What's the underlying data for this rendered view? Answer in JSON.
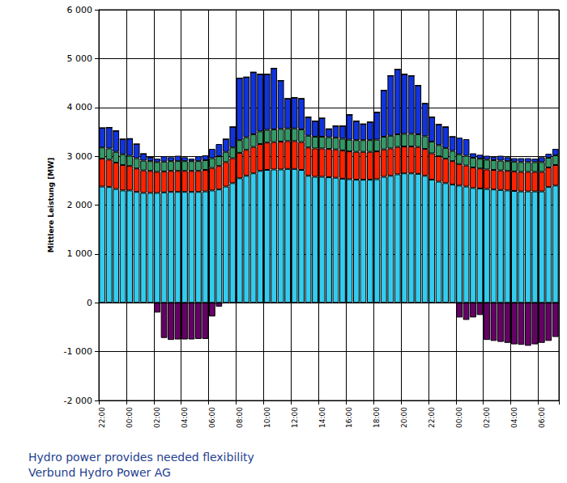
{
  "chart_data": {
    "type": "bar",
    "title": "Hydro power provides needed flexibility",
    "subtitle": "Verbund Hydro Power AG",
    "y_label": "Mittlere Leistung [MW]",
    "stacked": true,
    "grid": true,
    "categories": [
      "22:00",
      null,
      null,
      null,
      "00:00",
      null,
      null,
      null,
      "02:00",
      null,
      null,
      null,
      "04:00",
      null,
      null,
      null,
      "06:00",
      null,
      null,
      null,
      "08:00",
      null,
      null,
      null,
      "10:00",
      null,
      null,
      null,
      "12:00",
      null,
      null,
      null,
      "14:00",
      null,
      null,
      null,
      "16:00",
      null,
      null,
      null,
      "18:00",
      null,
      null,
      null,
      "20:00",
      null,
      null,
      null,
      "22:00",
      null,
      null,
      null,
      "00:00",
      null,
      null,
      null,
      "02:00",
      null,
      null,
      null,
      "04:00",
      null,
      null,
      null,
      "06:00",
      null,
      null
    ],
    "series": [
      {
        "color": "#33ccee",
        "values": [
          2380,
          2370,
          2330,
          2300,
          2300,
          2270,
          2250,
          2250,
          2250,
          2260,
          2270,
          2270,
          2270,
          2270,
          2270,
          2280,
          2300,
          2320,
          2380,
          2450,
          2550,
          2600,
          2650,
          2700,
          2720,
          2730,
          2730,
          2740,
          2740,
          2720,
          2600,
          2580,
          2580,
          2570,
          2560,
          2540,
          2530,
          2520,
          2520,
          2520,
          2530,
          2580,
          2600,
          2630,
          2650,
          2650,
          2640,
          2600,
          2520,
          2480,
          2450,
          2420,
          2400,
          2380,
          2350,
          2340,
          2330,
          2320,
          2310,
          2300,
          2290,
          2280,
          2280,
          2280,
          2280,
          2370,
          2400
        ]
      },
      {
        "color": "#ff2200",
        "values": [
          570,
          560,
          540,
          520,
          500,
          480,
          460,
          450,
          430,
          430,
          430,
          430,
          430,
          430,
          430,
          440,
          460,
          480,
          500,
          510,
          520,
          530,
          540,
          550,
          560,
          560,
          570,
          570,
          570,
          570,
          580,
          580,
          580,
          580,
          580,
          580,
          570,
          570,
          570,
          570,
          570,
          560,
          560,
          560,
          550,
          550,
          550,
          550,
          540,
          520,
          500,
          480,
          440,
          430,
          420,
          410,
          400,
          400,
          400,
          400,
          400,
          400,
          400,
          400,
          400,
          400,
          420
        ]
      },
      {
        "color": "#339966",
        "values": [
          230,
          230,
          220,
          220,
          210,
          210,
          200,
          200,
          200,
          200,
          200,
          200,
          200,
          200,
          200,
          200,
          200,
          200,
          210,
          220,
          260,
          260,
          260,
          260,
          260,
          260,
          260,
          260,
          260,
          260,
          240,
          240,
          240,
          240,
          240,
          240,
          240,
          240,
          240,
          240,
          240,
          260,
          260,
          260,
          260,
          260,
          260,
          260,
          240,
          230,
          220,
          210,
          200,
          200,
          200,
          200,
          200,
          200,
          200,
          200,
          200,
          200,
          200,
          200,
          200,
          200,
          200
        ]
      },
      {
        "color": "#1133dd",
        "values": [
          400,
          430,
          430,
          310,
          350,
          290,
          140,
          80,
          70,
          110,
          80,
          110,
          80,
          50,
          100,
          100,
          190,
          250,
          260,
          420,
          1270,
          1230,
          1270,
          1170,
          1140,
          1250,
          990,
          610,
          630,
          630,
          380,
          320,
          380,
          170,
          240,
          260,
          510,
          390,
          330,
          370,
          560,
          950,
          1230,
          1330,
          1220,
          1190,
          1000,
          670,
          500,
          420,
          430,
          290,
          340,
          340,
          90,
          80,
          80,
          70,
          100,
          80,
          70,
          80,
          80,
          70,
          100,
          80,
          130
        ]
      },
      {
        "color": "#660066",
        "values": [
          0,
          0,
          0,
          0,
          0,
          0,
          0,
          0,
          -200,
          -720,
          -760,
          -750,
          -750,
          -750,
          -740,
          -740,
          -280,
          -80,
          0,
          0,
          0,
          0,
          0,
          0,
          0,
          0,
          0,
          0,
          0,
          0,
          0,
          0,
          0,
          0,
          0,
          0,
          0,
          0,
          0,
          0,
          0,
          0,
          0,
          0,
          0,
          0,
          0,
          0,
          0,
          0,
          0,
          0,
          -300,
          -350,
          -300,
          -250,
          -760,
          -780,
          -800,
          -820,
          -850,
          -860,
          -880,
          -850,
          -820,
          -780,
          -700
        ]
      }
    ],
    "ylim": [
      -2000,
      6000
    ],
    "yticks": [
      {
        "value": -2000,
        "label": "-2 000"
      },
      {
        "value": -1000,
        "label": "-1 000"
      },
      0,
      {
        "value": 1000,
        "label": "1 000"
      },
      {
        "value": 2000,
        "label": "2 000"
      },
      {
        "value": 3000,
        "label": "3 000"
      },
      {
        "value": 4000,
        "label": "4 000"
      },
      {
        "value": 5000,
        "label": "5 000"
      },
      {
        "value": 6000,
        "label": "6 000"
      }
    ]
  }
}
